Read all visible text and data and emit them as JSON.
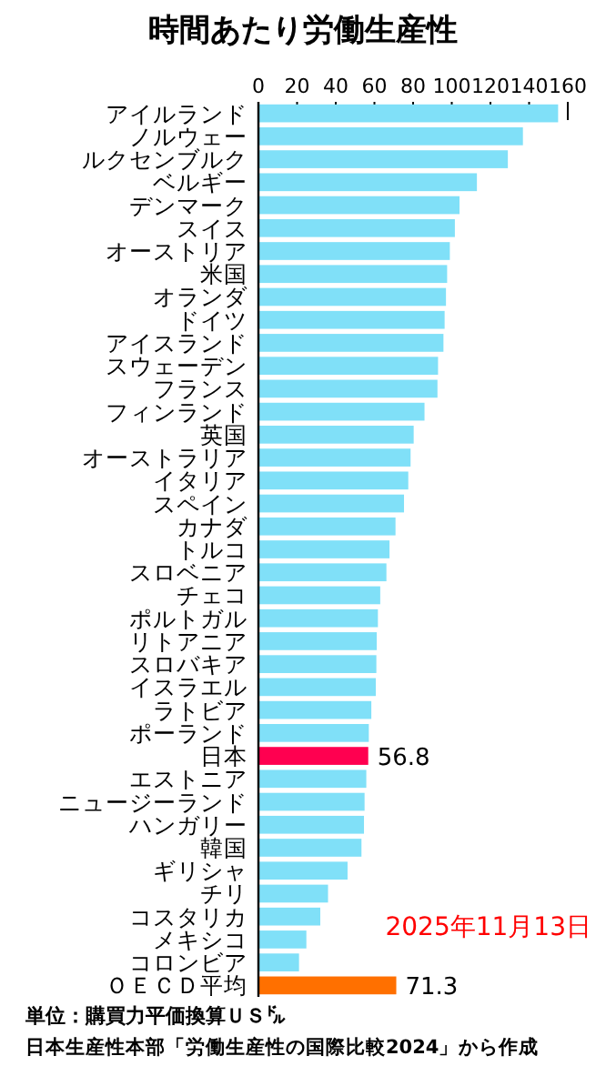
{
  "chart_data": {
    "type": "bar",
    "orientation": "horizontal",
    "title": "時間あたり労働生産性",
    "categories": [
      "アイルランド",
      "ノルウェー",
      "ルクセンブルク",
      "ベルギー",
      "デンマーク",
      "スイス",
      "オーストリア",
      "米国",
      "オランダ",
      "ドイツ",
      "アイスランド",
      "スウェーデン",
      "フランス",
      "フィンランド",
      "英国",
      "オーストラリア",
      "イタリア",
      "スペイン",
      "カナダ",
      "トルコ",
      "スロベニア",
      "チェコ",
      "ポルトガル",
      "リトアニア",
      "スロバキア",
      "イスラエル",
      "ラトビア",
      "ポーランド",
      "日本",
      "エストニア",
      "ニュージーランド",
      "ハンガリー",
      "韓国",
      "ギリシャ",
      "チリ",
      "コスタリカ",
      "メキシコ",
      "コロンビア",
      "ＯＥＣＤ平均"
    ],
    "values": [
      155,
      136.8,
      129,
      113,
      104,
      101.6,
      99,
      97.6,
      97,
      96.3,
      95.7,
      92.9,
      92.6,
      85.9,
      80.3,
      78.7,
      77.5,
      75.3,
      70.9,
      67.8,
      66.2,
      63,
      61.8,
      61.2,
      61,
      60.7,
      58.4,
      57.1,
      56.8,
      55.8,
      54.9,
      54.6,
      53.3,
      46.1,
      36,
      32,
      24.8,
      21,
      71.3
    ],
    "colors": [
      "#80e0f8",
      "#80e0f8",
      "#80e0f8",
      "#80e0f8",
      "#80e0f8",
      "#80e0f8",
      "#80e0f8",
      "#80e0f8",
      "#80e0f8",
      "#80e0f8",
      "#80e0f8",
      "#80e0f8",
      "#80e0f8",
      "#80e0f8",
      "#80e0f8",
      "#80e0f8",
      "#80e0f8",
      "#80e0f8",
      "#80e0f8",
      "#80e0f8",
      "#80e0f8",
      "#80e0f8",
      "#80e0f8",
      "#80e0f8",
      "#80e0f8",
      "#80e0f8",
      "#80e0f8",
      "#80e0f8",
      "#ff0050",
      "#80e0f8",
      "#80e0f8",
      "#80e0f8",
      "#80e0f8",
      "#80e0f8",
      "#80e0f8",
      "#80e0f8",
      "#80e0f8",
      "#80e0f8",
      "#ff7000"
    ],
    "value_labels": [
      null,
      null,
      null,
      null,
      null,
      null,
      null,
      null,
      null,
      null,
      null,
      null,
      null,
      null,
      null,
      null,
      null,
      null,
      null,
      null,
      null,
      null,
      null,
      null,
      null,
      null,
      null,
      null,
      "56.8",
      null,
      null,
      null,
      null,
      null,
      null,
      null,
      null,
      null,
      "71.3"
    ],
    "xlim": [
      0,
      160
    ],
    "xticks": [
      0,
      20,
      40,
      60,
      80,
      100,
      120,
      140,
      160
    ],
    "annotations": [
      "2025年11月13日",
      "単位：購買力平価換算ＵＳ㌦",
      "日本生産性本部「労働生産性の国際比較2024」から作成"
    ]
  }
}
